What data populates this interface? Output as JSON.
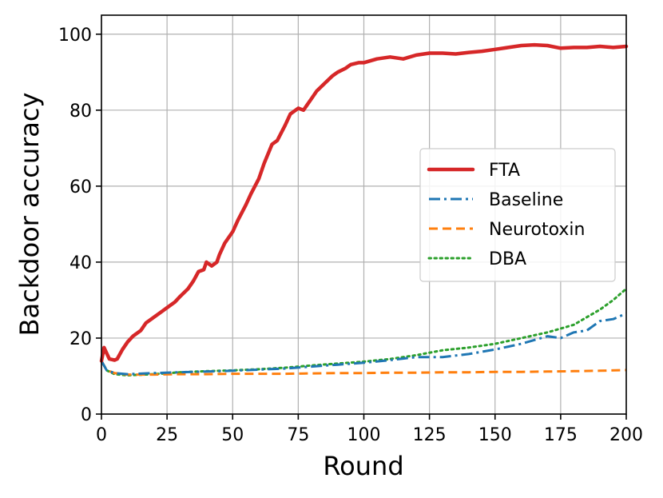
{
  "chart_data": {
    "type": "line",
    "title": "",
    "xlabel": "Round",
    "ylabel": "Backdoor accuracy",
    "xlim": [
      0,
      200
    ],
    "ylim": [
      0,
      105
    ],
    "xticks": [
      "0",
      "25",
      "50",
      "75",
      "100",
      "125",
      "150",
      "175",
      "200"
    ],
    "yticks": [
      "0",
      "20",
      "40",
      "60",
      "80",
      "100"
    ],
    "grid": true,
    "legend_position": "center-right",
    "series": [
      {
        "name": "FTA",
        "color": "#d62728",
        "style": "solid",
        "points": [
          [
            0,
            14
          ],
          [
            1,
            17.5
          ],
          [
            2,
            16
          ],
          [
            3,
            14.5
          ],
          [
            5,
            14.2
          ],
          [
            6,
            14.5
          ],
          [
            8,
            17
          ],
          [
            10,
            19
          ],
          [
            12,
            20.5
          ],
          [
            15,
            22
          ],
          [
            17,
            24
          ],
          [
            20,
            25.5
          ],
          [
            23,
            27
          ],
          [
            25,
            28
          ],
          [
            28,
            29.5
          ],
          [
            30,
            31
          ],
          [
            33,
            33
          ],
          [
            35,
            35
          ],
          [
            37,
            37.5
          ],
          [
            39,
            38
          ],
          [
            40,
            40
          ],
          [
            42,
            39
          ],
          [
            44,
            40
          ],
          [
            45,
            42
          ],
          [
            47,
            45
          ],
          [
            50,
            48
          ],
          [
            52,
            51
          ],
          [
            55,
            55
          ],
          [
            57,
            58
          ],
          [
            60,
            62
          ],
          [
            62,
            66
          ],
          [
            65,
            71
          ],
          [
            67,
            72
          ],
          [
            70,
            76
          ],
          [
            72,
            79
          ],
          [
            75,
            80.5
          ],
          [
            77,
            80
          ],
          [
            80,
            83
          ],
          [
            82,
            85
          ],
          [
            85,
            87
          ],
          [
            88,
            89
          ],
          [
            90,
            90
          ],
          [
            93,
            91
          ],
          [
            95,
            92
          ],
          [
            98,
            92.5
          ],
          [
            100,
            92.5
          ],
          [
            105,
            93.5
          ],
          [
            110,
            94
          ],
          [
            115,
            93.5
          ],
          [
            120,
            94.5
          ],
          [
            125,
            95
          ],
          [
            130,
            95
          ],
          [
            135,
            94.8
          ],
          [
            140,
            95.2
          ],
          [
            145,
            95.5
          ],
          [
            150,
            96
          ],
          [
            155,
            96.5
          ],
          [
            160,
            97
          ],
          [
            165,
            97.2
          ],
          [
            170,
            97
          ],
          [
            175,
            96.3
          ],
          [
            180,
            96.5
          ],
          [
            185,
            96.5
          ],
          [
            190,
            96.8
          ],
          [
            195,
            96.5
          ],
          [
            200,
            96.8
          ]
        ]
      },
      {
        "name": "Baseline",
        "color": "#1f77b4",
        "style": "dashdot",
        "points": [
          [
            0,
            14
          ],
          [
            2,
            11.5
          ],
          [
            5,
            10.8
          ],
          [
            10,
            10.5
          ],
          [
            20,
            10.8
          ],
          [
            30,
            11
          ],
          [
            40,
            11.2
          ],
          [
            50,
            11.4
          ],
          [
            60,
            11.7
          ],
          [
            70,
            12
          ],
          [
            80,
            12.5
          ],
          [
            90,
            13
          ],
          [
            100,
            13.5
          ],
          [
            110,
            14.2
          ],
          [
            120,
            15
          ],
          [
            130,
            15
          ],
          [
            140,
            15.8
          ],
          [
            150,
            17
          ],
          [
            160,
            18.5
          ],
          [
            170,
            20.5
          ],
          [
            175,
            20
          ],
          [
            180,
            21.5
          ],
          [
            185,
            22
          ],
          [
            190,
            24.5
          ],
          [
            195,
            25
          ],
          [
            200,
            26.5
          ]
        ]
      },
      {
        "name": "Neurotoxin",
        "color": "#ff7f0e",
        "style": "dashed",
        "points": [
          [
            0,
            14
          ],
          [
            2,
            11.5
          ],
          [
            5,
            10.8
          ],
          [
            10,
            10.4
          ],
          [
            20,
            10.4
          ],
          [
            30,
            10.5
          ],
          [
            40,
            10.5
          ],
          [
            50,
            10.6
          ],
          [
            60,
            10.6
          ],
          [
            70,
            10.6
          ],
          [
            80,
            10.7
          ],
          [
            90,
            10.8
          ],
          [
            100,
            10.8
          ],
          [
            110,
            10.9
          ],
          [
            120,
            10.9
          ],
          [
            130,
            11
          ],
          [
            140,
            11
          ],
          [
            150,
            11.1
          ],
          [
            160,
            11.1
          ],
          [
            170,
            11.2
          ],
          [
            180,
            11.3
          ],
          [
            190,
            11.4
          ],
          [
            200,
            11.6
          ]
        ]
      },
      {
        "name": "DBA",
        "color": "#2ca02c",
        "style": "dotted",
        "points": [
          [
            0,
            14
          ],
          [
            2,
            11.5
          ],
          [
            5,
            10.5
          ],
          [
            10,
            10.2
          ],
          [
            20,
            10.5
          ],
          [
            30,
            11
          ],
          [
            40,
            11.3
          ],
          [
            50,
            11.5
          ],
          [
            60,
            11.8
          ],
          [
            70,
            12.2
          ],
          [
            80,
            12.8
          ],
          [
            90,
            13.3
          ],
          [
            100,
            13.8
          ],
          [
            110,
            14.5
          ],
          [
            120,
            15.5
          ],
          [
            130,
            16.8
          ],
          [
            140,
            17.5
          ],
          [
            150,
            18.5
          ],
          [
            160,
            20
          ],
          [
            170,
            21.5
          ],
          [
            180,
            23.5
          ],
          [
            190,
            27.5
          ],
          [
            195,
            30
          ],
          [
            200,
            33
          ]
        ]
      }
    ]
  }
}
